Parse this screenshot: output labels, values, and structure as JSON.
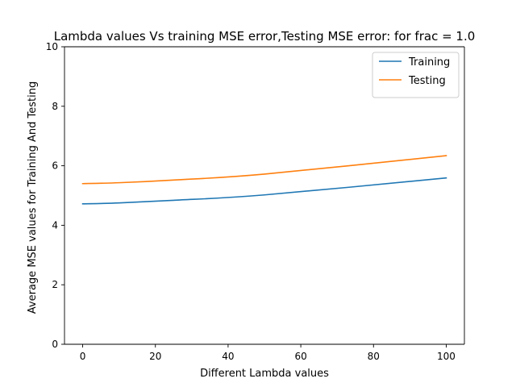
{
  "chart_data": {
    "type": "line",
    "title": "Lambda values Vs training MSE error,Testing MSE error: for frac =  1.0",
    "xlabel": "Different Lambda values",
    "ylabel": "Average MSE values for Training And Testing",
    "xlim": [
      -5,
      105
    ],
    "ylim": [
      0,
      10
    ],
    "xticks": [
      0,
      20,
      40,
      60,
      80,
      100
    ],
    "yticks": [
      0,
      2,
      4,
      6,
      8,
      10
    ],
    "grid": false,
    "legend_position": "top-right",
    "series": [
      {
        "name": "Training",
        "color": "#1f77b4",
        "x": [
          0,
          10,
          25,
          50,
          100
        ],
        "y": [
          4.72,
          4.75,
          4.84,
          5.02,
          5.59
        ]
      },
      {
        "name": "Testing",
        "color": "#ff7f0e",
        "x": [
          0,
          10,
          25,
          50,
          100
        ],
        "y": [
          5.4,
          5.43,
          5.52,
          5.72,
          6.34
        ]
      }
    ]
  }
}
